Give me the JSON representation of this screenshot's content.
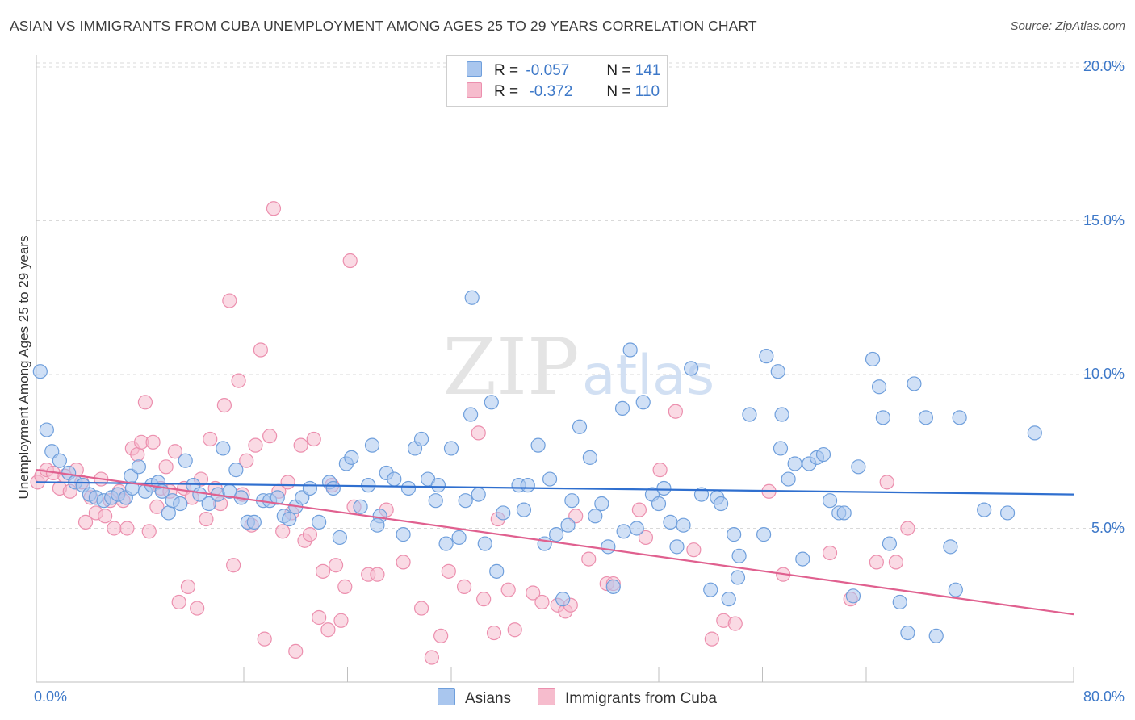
{
  "title": "ASIAN VS IMMIGRANTS FROM CUBA UNEMPLOYMENT AMONG AGES 25 TO 29 YEARS CORRELATION CHART",
  "source": "Source: ZipAtlas.com",
  "watermark": {
    "zip": "ZIP",
    "atlas": "atlas"
  },
  "legend": {
    "r_label": "R =",
    "n_label": "N =",
    "asians": {
      "r": "-0.057",
      "n": "141"
    },
    "cuba": {
      "r": "-0.372",
      "n": "110"
    }
  },
  "colors": {
    "asians_fill": "#a9c6ee",
    "asians_stroke": "#6f9fdc",
    "asians_line": "#2f6fcf",
    "cuba_fill": "#f6bccd",
    "cuba_stroke": "#ec8fae",
    "cuba_line": "#e0608f",
    "tick_text": "#3d78c8",
    "grid": "#d9d9d9"
  },
  "chart_data": {
    "type": "scatter",
    "title": "ASIAN VS IMMIGRANTS FROM CUBA UNEMPLOYMENT AMONG AGES 25 TO 29 YEARS CORRELATION CHART",
    "xlabel": "",
    "ylabel": "Unemployment Among Ages 25 to 29 years",
    "xlim": [
      0,
      80
    ],
    "ylim": [
      0,
      20
    ],
    "x_tick_labels": [
      "0.0%",
      "80.0%"
    ],
    "y_ticks": [
      5,
      10,
      15,
      20
    ],
    "y_tick_labels": [
      "5.0%",
      "10.0%",
      "15.0%",
      "20.0%"
    ],
    "legend_position": "bottom-center",
    "series": [
      {
        "name": "Asians",
        "trend": [
          [
            0,
            6.5
          ],
          [
            80,
            6.1
          ]
        ],
        "points": [
          [
            0.3,
            10.1
          ],
          [
            0.8,
            8.2
          ],
          [
            1.2,
            7.5
          ],
          [
            1.8,
            7.2
          ],
          [
            2.5,
            6.8
          ],
          [
            3,
            6.5
          ],
          [
            3.6,
            6.4
          ],
          [
            4.1,
            6.1
          ],
          [
            4.6,
            6.0
          ],
          [
            5.2,
            5.9
          ],
          [
            5.8,
            6.0
          ],
          [
            6.3,
            6.1
          ],
          [
            6.9,
            6.0
          ],
          [
            7.4,
            6.3
          ],
          [
            7.3,
            6.7
          ],
          [
            7.9,
            7.0
          ],
          [
            8.4,
            6.2
          ],
          [
            8.9,
            6.4
          ],
          [
            9.4,
            6.5
          ],
          [
            9.7,
            6.2
          ],
          [
            10.2,
            5.5
          ],
          [
            10.5,
            5.9
          ],
          [
            11.1,
            5.8
          ],
          [
            11.5,
            7.2
          ],
          [
            12.1,
            6.4
          ],
          [
            12.6,
            6.1
          ],
          [
            13.3,
            5.8
          ],
          [
            14.0,
            6.1
          ],
          [
            14.4,
            7.6
          ],
          [
            14.9,
            6.2
          ],
          [
            15.4,
            6.9
          ],
          [
            15.8,
            6.0
          ],
          [
            16.3,
            5.2
          ],
          [
            16.8,
            5.2
          ],
          [
            17.5,
            5.9
          ],
          [
            18.0,
            5.9
          ],
          [
            18.6,
            6.0
          ],
          [
            19.1,
            5.4
          ],
          [
            19.5,
            5.3
          ],
          [
            20.0,
            5.7
          ],
          [
            20.5,
            6.0
          ],
          [
            21.1,
            6.3
          ],
          [
            21.8,
            5.2
          ],
          [
            22.6,
            6.5
          ],
          [
            22.9,
            6.3
          ],
          [
            23.4,
            4.7
          ],
          [
            23.9,
            7.1
          ],
          [
            24.3,
            7.3
          ],
          [
            25.0,
            5.7
          ],
          [
            25.6,
            6.4
          ],
          [
            25.9,
            7.7
          ],
          [
            26.5,
            5.4
          ],
          [
            27.0,
            6.8
          ],
          [
            27.6,
            6.6
          ],
          [
            28.3,
            4.8
          ],
          [
            28.7,
            6.3
          ],
          [
            29.2,
            7.6
          ],
          [
            29.7,
            7.9
          ],
          [
            30.2,
            6.6
          ],
          [
            31.0,
            6.4
          ],
          [
            31.6,
            4.5
          ],
          [
            32.0,
            7.6
          ],
          [
            32.6,
            4.7
          ],
          [
            33.1,
            5.9
          ],
          [
            33.5,
            8.7
          ],
          [
            34.1,
            6.1
          ],
          [
            34.6,
            4.5
          ],
          [
            35.1,
            9.1
          ],
          [
            35.5,
            3.6
          ],
          [
            36.0,
            5.5
          ],
          [
            37.2,
            6.4
          ],
          [
            37.6,
            5.6
          ],
          [
            38.7,
            7.7
          ],
          [
            39.2,
            4.5
          ],
          [
            39.6,
            6.6
          ],
          [
            40.1,
            4.8
          ],
          [
            40.6,
            2.7
          ],
          [
            41.3,
            5.9
          ],
          [
            41.9,
            8.3
          ],
          [
            42.7,
            7.3
          ],
          [
            43.1,
            5.4
          ],
          [
            43.6,
            5.8
          ],
          [
            44.1,
            4.4
          ],
          [
            44.5,
            3.1
          ],
          [
            45.2,
            8.9
          ],
          [
            45.8,
            10.8
          ],
          [
            46.3,
            5.0
          ],
          [
            46.8,
            9.1
          ],
          [
            47.5,
            6.1
          ],
          [
            48.0,
            5.8
          ],
          [
            48.4,
            6.3
          ],
          [
            48.9,
            5.2
          ],
          [
            49.4,
            4.4
          ],
          [
            49.9,
            5.1
          ],
          [
            50.5,
            10.2
          ],
          [
            51.3,
            6.1
          ],
          [
            52.0,
            3.0
          ],
          [
            52.5,
            6.0
          ],
          [
            52.8,
            5.8
          ],
          [
            53.4,
            2.7
          ],
          [
            53.8,
            4.8
          ],
          [
            54.2,
            4.1
          ],
          [
            55.0,
            8.7
          ],
          [
            56.1,
            4.8
          ],
          [
            56.3,
            10.6
          ],
          [
            57.2,
            10.1
          ],
          [
            57.5,
            8.7
          ],
          [
            58.0,
            6.6
          ],
          [
            58.5,
            7.1
          ],
          [
            59.1,
            4.0
          ],
          [
            59.6,
            7.1
          ],
          [
            60.2,
            7.3
          ],
          [
            60.7,
            7.4
          ],
          [
            61.2,
            5.9
          ],
          [
            61.9,
            5.5
          ],
          [
            62.3,
            5.5
          ],
          [
            63.0,
            2.8
          ],
          [
            63.4,
            7.0
          ],
          [
            64.5,
            10.5
          ],
          [
            65.0,
            9.6
          ],
          [
            65.3,
            8.6
          ],
          [
            65.8,
            4.5
          ],
          [
            66.6,
            2.6
          ],
          [
            67.2,
            1.6
          ],
          [
            67.7,
            9.7
          ],
          [
            68.6,
            8.6
          ],
          [
            69.4,
            1.5
          ],
          [
            70.5,
            4.4
          ],
          [
            70.9,
            3.0
          ],
          [
            71.2,
            8.6
          ],
          [
            73.1,
            5.6
          ],
          [
            74.9,
            5.5
          ],
          [
            77.0,
            8.1
          ],
          [
            33.6,
            12.5
          ],
          [
            57.4,
            7.6
          ],
          [
            45.3,
            4.9
          ],
          [
            37.9,
            6.4
          ],
          [
            54.1,
            3.4
          ],
          [
            30.8,
            5.9
          ],
          [
            41.0,
            5.1
          ],
          [
            26.3,
            5.1
          ]
        ]
      },
      {
        "name": "Immigrants from Cuba",
        "trend": [
          [
            0,
            6.9
          ],
          [
            80,
            2.2
          ]
        ],
        "points": [
          [
            0.1,
            6.5
          ],
          [
            0.4,
            6.7
          ],
          [
            0.8,
            6.9
          ],
          [
            1.3,
            6.8
          ],
          [
            1.8,
            6.3
          ],
          [
            2.2,
            6.7
          ],
          [
            2.6,
            6.2
          ],
          [
            3.1,
            6.9
          ],
          [
            3.5,
            6.5
          ],
          [
            3.8,
            5.2
          ],
          [
            4.2,
            6.0
          ],
          [
            4.6,
            5.5
          ],
          [
            5.0,
            6.6
          ],
          [
            5.3,
            5.4
          ],
          [
            5.7,
            5.9
          ],
          [
            6.0,
            5.0
          ],
          [
            6.4,
            6.2
          ],
          [
            6.7,
            5.9
          ],
          [
            7.0,
            5.0
          ],
          [
            7.4,
            7.6
          ],
          [
            7.8,
            7.4
          ],
          [
            8.1,
            7.8
          ],
          [
            8.4,
            9.1
          ],
          [
            8.7,
            4.9
          ],
          [
            9.0,
            7.8
          ],
          [
            9.3,
            5.7
          ],
          [
            9.6,
            6.3
          ],
          [
            10.0,
            7.0
          ],
          [
            10.3,
            6.2
          ],
          [
            10.7,
            7.5
          ],
          [
            11.0,
            2.6
          ],
          [
            11.4,
            6.3
          ],
          [
            11.7,
            3.1
          ],
          [
            12.0,
            6.0
          ],
          [
            12.4,
            2.4
          ],
          [
            12.7,
            6.6
          ],
          [
            13.1,
            5.3
          ],
          [
            13.4,
            7.9
          ],
          [
            13.8,
            6.3
          ],
          [
            14.2,
            5.8
          ],
          [
            14.5,
            9.0
          ],
          [
            14.9,
            12.4
          ],
          [
            15.2,
            3.8
          ],
          [
            15.6,
            9.8
          ],
          [
            15.9,
            6.1
          ],
          [
            16.2,
            7.2
          ],
          [
            16.6,
            5.1
          ],
          [
            16.9,
            7.7
          ],
          [
            17.3,
            10.8
          ],
          [
            17.6,
            1.4
          ],
          [
            18.0,
            8.0
          ],
          [
            18.3,
            15.4
          ],
          [
            18.7,
            6.2
          ],
          [
            19.0,
            4.9
          ],
          [
            19.4,
            6.5
          ],
          [
            19.7,
            5.5
          ],
          [
            20.0,
            1.0
          ],
          [
            20.4,
            7.7
          ],
          [
            20.7,
            4.6
          ],
          [
            21.1,
            4.8
          ],
          [
            21.4,
            7.9
          ],
          [
            21.8,
            2.1
          ],
          [
            22.1,
            3.6
          ],
          [
            22.5,
            1.7
          ],
          [
            22.8,
            6.4
          ],
          [
            23.1,
            3.8
          ],
          [
            23.5,
            2.0
          ],
          [
            23.8,
            3.1
          ],
          [
            24.2,
            13.7
          ],
          [
            24.5,
            5.7
          ],
          [
            25.6,
            3.5
          ],
          [
            26.3,
            3.5
          ],
          [
            27.0,
            5.6
          ],
          [
            28.3,
            3.9
          ],
          [
            29.7,
            2.4
          ],
          [
            30.5,
            0.8
          ],
          [
            31.2,
            1.5
          ],
          [
            31.8,
            3.6
          ],
          [
            33.0,
            3.1
          ],
          [
            34.1,
            8.1
          ],
          [
            34.5,
            2.7
          ],
          [
            35.3,
            1.6
          ],
          [
            35.6,
            5.3
          ],
          [
            36.9,
            1.7
          ],
          [
            38.3,
            2.9
          ],
          [
            39.0,
            2.6
          ],
          [
            40.2,
            2.5
          ],
          [
            40.8,
            2.3
          ],
          [
            41.2,
            2.5
          ],
          [
            41.6,
            5.4
          ],
          [
            42.6,
            4.0
          ],
          [
            44.0,
            3.2
          ],
          [
            44.5,
            3.2
          ],
          [
            46.5,
            5.6
          ],
          [
            47.0,
            4.7
          ],
          [
            48.1,
            6.9
          ],
          [
            49.3,
            8.8
          ],
          [
            50.7,
            4.3
          ],
          [
            52.1,
            1.4
          ],
          [
            53.0,
            2.0
          ],
          [
            53.9,
            1.9
          ],
          [
            56.5,
            6.2
          ],
          [
            57.6,
            3.5
          ],
          [
            61.2,
            4.2
          ],
          [
            64.8,
            3.9
          ],
          [
            65.6,
            6.5
          ],
          [
            66.3,
            3.9
          ],
          [
            67.2,
            5.0
          ],
          [
            62.8,
            2.7
          ],
          [
            36.4,
            3.0
          ]
        ]
      }
    ]
  }
}
